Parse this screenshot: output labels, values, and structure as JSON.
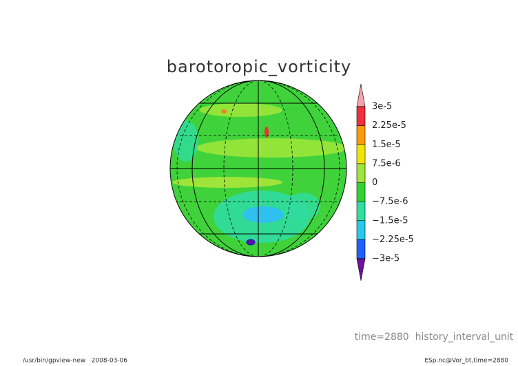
{
  "title": "barotoropic_vorticity",
  "colorbar": {
    "ticks": [
      {
        "value": 3e-05,
        "label": "3e-5"
      },
      {
        "value": 2.25e-05,
        "label": "2.25e-5"
      },
      {
        "value": 1.5e-05,
        "label": "1.5e-5"
      },
      {
        "value": 7.5e-06,
        "label": "7.5e-6"
      },
      0,
      {
        "value": -7.5e-06,
        "label": "−7.5e-6"
      },
      {
        "value": -1.5e-05,
        "label": "−1.5e-5"
      },
      {
        "value": -2.25e-05,
        "label": "−2.25e-5"
      },
      {
        "value": -3e-05,
        "label": "−3e-5"
      }
    ],
    "colors": [
      "#f4a3a8",
      "#f0303a",
      "#ff9a00",
      "#f2e600",
      "#9ee63c",
      "#33d233",
      "#2fe0a0",
      "#28c8f0",
      "#2060ff",
      "#1010c8",
      "#7010a0"
    ]
  },
  "annotation": "time=2880  history_interval_unit",
  "footer": {
    "left": "/usr/bin/gpview-new   2008-03-06",
    "right": "ESp.nc@Vor_bt,time=2880"
  }
}
